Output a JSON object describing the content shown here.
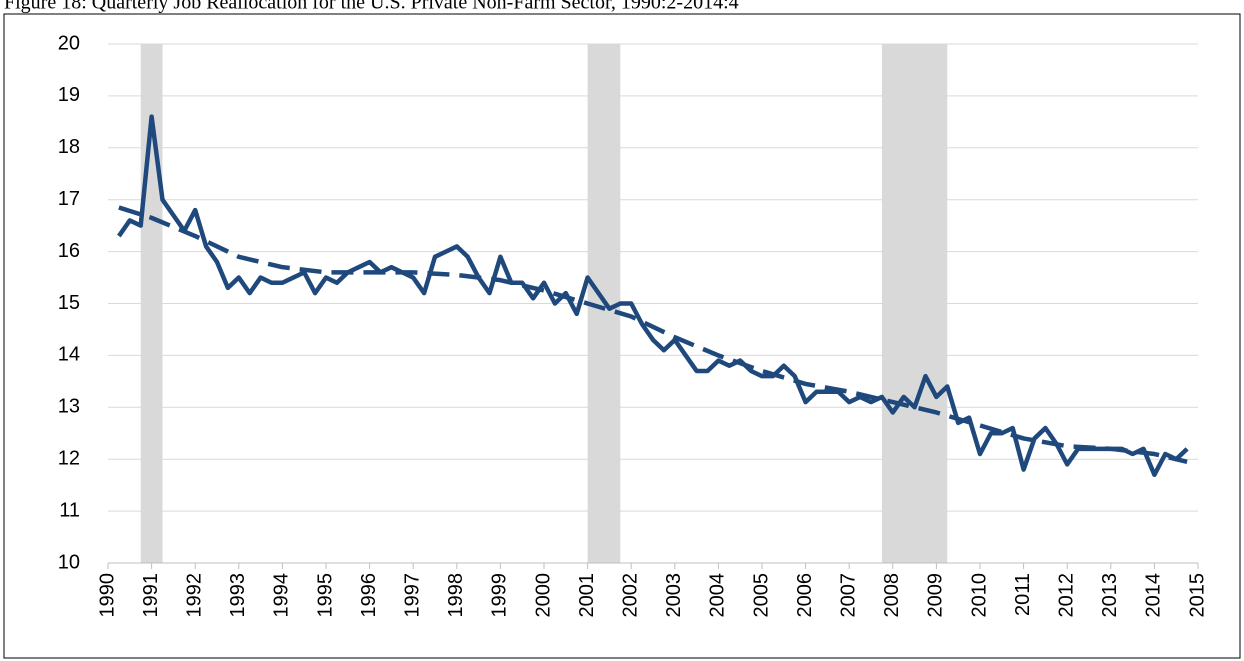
{
  "chart_data": {
    "type": "line",
    "title": "Figure 18: Quarterly Job Reallocation for the U.S. Private Non-Farm Sector, 1990:2-2014:4",
    "x": [
      1990.25,
      1990.5,
      1990.75,
      1991,
      1991.25,
      1991.5,
      1991.75,
      1992,
      1992.25,
      1992.5,
      1992.75,
      1993,
      1993.25,
      1993.5,
      1993.75,
      1994,
      1994.25,
      1994.5,
      1994.75,
      1995,
      1995.25,
      1995.5,
      1995.75,
      1996,
      1996.25,
      1996.5,
      1996.75,
      1997,
      1997.25,
      1997.5,
      1997.75,
      1998,
      1998.25,
      1998.5,
      1998.75,
      1999,
      1999.25,
      1999.5,
      1999.75,
      2000,
      2000.25,
      2000.5,
      2000.75,
      2001,
      2001.25,
      2001.5,
      2001.75,
      2002,
      2002.25,
      2002.5,
      2002.75,
      2003,
      2003.25,
      2003.5,
      2003.75,
      2004,
      2004.25,
      2004.5,
      2004.75,
      2005,
      2005.25,
      2005.5,
      2005.75,
      2006,
      2006.25,
      2006.5,
      2006.75,
      2007,
      2007.25,
      2007.5,
      2007.75,
      2008,
      2008.25,
      2008.5,
      2008.75,
      2009,
      2009.25,
      2009.5,
      2009.75,
      2010,
      2010.25,
      2010.5,
      2010.75,
      2011,
      2011.25,
      2011.5,
      2011.75,
      2012,
      2012.25,
      2012.5,
      2012.75,
      2013,
      2013.25,
      2013.5,
      2013.75,
      2014,
      2014.25,
      2014.5,
      2014.75
    ],
    "series": [
      {
        "color": "#1f497d",
        "style": "solid",
        "values": [
          16.3,
          16.6,
          16.5,
          18.6,
          17.0,
          16.7,
          16.4,
          16.8,
          16.1,
          15.8,
          15.3,
          15.5,
          15.2,
          15.5,
          15.4,
          15.4,
          15.5,
          15.6,
          15.2,
          15.5,
          15.4,
          15.6,
          15.7,
          15.8,
          15.6,
          15.7,
          15.6,
          15.5,
          15.2,
          15.9,
          16.0,
          16.1,
          15.9,
          15.5,
          15.2,
          15.9,
          15.4,
          15.4,
          15.1,
          15.4,
          15.0,
          15.2,
          14.8,
          15.5,
          15.2,
          14.9,
          15.0,
          15.0,
          14.6,
          14.3,
          14.1,
          14.3,
          14.0,
          13.7,
          13.7,
          13.9,
          13.8,
          13.9,
          13.7,
          13.6,
          13.6,
          13.8,
          13.6,
          13.1,
          13.3,
          13.3,
          13.3,
          13.1,
          13.2,
          13.1,
          13.2,
          12.9,
          13.2,
          13.0,
          13.6,
          13.2,
          13.4,
          12.7,
          12.8,
          12.1,
          12.5,
          12.5,
          12.6,
          11.8,
          12.4,
          12.6,
          12.3,
          11.9,
          12.2,
          12.2,
          12.2,
          12.2,
          12.2,
          12.1,
          12.2,
          11.7,
          12.1,
          12.0,
          12.2
        ]
      },
      {
        "color": "#1f497d",
        "style": "dashed",
        "x": [
          1990.25,
          1991,
          1992,
          1993,
          1994,
          1995,
          1996,
          1997,
          1998,
          1999,
          2000,
          2001,
          2002,
          2003,
          2004,
          2005,
          2006,
          2007,
          2008,
          2009,
          2010,
          2011,
          2012,
          2013,
          2014,
          2014.75
        ],
        "values": [
          16.85,
          16.65,
          16.3,
          15.9,
          15.7,
          15.6,
          15.6,
          15.6,
          15.55,
          15.45,
          15.25,
          15.0,
          14.75,
          14.35,
          14.0,
          13.7,
          13.45,
          13.3,
          13.1,
          12.9,
          12.65,
          12.4,
          12.25,
          12.2,
          12.1,
          11.95
        ]
      }
    ],
    "recessions": [
      [
        1990.75,
        1991.25
      ],
      [
        2001,
        2001.75
      ],
      [
        2007.75,
        2009.25
      ]
    ],
    "recession_color": "#d9d9d9",
    "xlim": [
      1990,
      2015
    ],
    "xticks": [
      1990,
      1991,
      1992,
      1993,
      1994,
      1995,
      1996,
      1997,
      1998,
      1999,
      2000,
      2001,
      2002,
      2003,
      2004,
      2005,
      2006,
      2007,
      2008,
      2009,
      2010,
      2011,
      2012,
      2013,
      2014,
      2015
    ],
    "ylim": [
      10,
      20
    ],
    "yticks": [
      10,
      11,
      12,
      13,
      14,
      15,
      16,
      17,
      18,
      19,
      20
    ],
    "grid": true
  }
}
